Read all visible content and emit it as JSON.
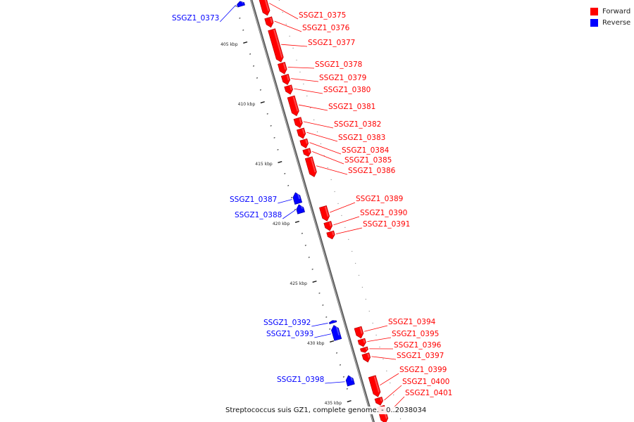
{
  "legend": {
    "forward": {
      "label": "Forward",
      "color": "#ff0000"
    },
    "reverse": {
      "label": "Reverse",
      "color": "#0000ff"
    }
  },
  "caption": "Streptococcus suis GZ1, complete genome. - 0..2038034",
  "colors": {
    "forward": "#ff0000",
    "reverse": "#0000ff",
    "axis": "#8a8a8a"
  },
  "axis": {
    "start_kbp": 401.5,
    "end_kbp": 437.5
  },
  "kbp_labels": [
    {
      "kbp": 405,
      "label": "405 kbp"
    },
    {
      "kbp": 410,
      "label": "410 kbp"
    },
    {
      "kbp": 415,
      "label": "415 kbp"
    },
    {
      "kbp": 420,
      "label": "420 kbp"
    },
    {
      "kbp": 425,
      "label": "425 kbp"
    },
    {
      "kbp": 430,
      "label": "430 kbp"
    },
    {
      "kbp": 435,
      "label": "435 kbp"
    }
  ],
  "genes": [
    {
      "id": "SSGZ1_0373",
      "strand": "reverse",
      "start_kbp": 401.7,
      "end_kbp": 402.1
    },
    {
      "id": "SSGZ1_0375",
      "strand": "forward",
      "start_kbp": 401.6,
      "end_kbp": 403.4
    },
    {
      "id": "SSGZ1_0376",
      "strand": "forward",
      "start_kbp": 403.6,
      "end_kbp": 404.4
    },
    {
      "id": "SSGZ1_0377",
      "strand": "forward",
      "start_kbp": 404.6,
      "end_kbp": 407.3
    },
    {
      "id": "SSGZ1_0378",
      "strand": "forward",
      "start_kbp": 407.4,
      "end_kbp": 408.3
    },
    {
      "id": "SSGZ1_0379",
      "strand": "forward",
      "start_kbp": 408.4,
      "end_kbp": 409.2
    },
    {
      "id": "SSGZ1_0380",
      "strand": "forward",
      "start_kbp": 409.3,
      "end_kbp": 410.0
    },
    {
      "id": "SSGZ1_0381",
      "strand": "forward",
      "start_kbp": 410.2,
      "end_kbp": 411.8
    },
    {
      "id": "SSGZ1_0382",
      "strand": "forward",
      "start_kbp": 412.0,
      "end_kbp": 412.8
    },
    {
      "id": "SSGZ1_0383",
      "strand": "forward",
      "start_kbp": 412.9,
      "end_kbp": 413.7
    },
    {
      "id": "SSGZ1_0384",
      "strand": "forward",
      "start_kbp": 413.8,
      "end_kbp": 414.5
    },
    {
      "id": "SSGZ1_0385",
      "strand": "forward",
      "start_kbp": 414.6,
      "end_kbp": 415.2
    },
    {
      "id": "SSGZ1_0386",
      "strand": "forward",
      "start_kbp": 415.3,
      "end_kbp": 416.9
    },
    {
      "id": "SSGZ1_0387",
      "strand": "reverse",
      "start_kbp": 417.7,
      "end_kbp": 418.6
    },
    {
      "id": "SSGZ1_0388",
      "strand": "reverse",
      "start_kbp": 418.7,
      "end_kbp": 419.4
    },
    {
      "id": "SSGZ1_0389",
      "strand": "forward",
      "start_kbp": 419.4,
      "end_kbp": 420.6
    },
    {
      "id": "SSGZ1_0390",
      "strand": "forward",
      "start_kbp": 420.7,
      "end_kbp": 421.4
    },
    {
      "id": "SSGZ1_0391",
      "strand": "forward",
      "start_kbp": 421.5,
      "end_kbp": 422.1
    },
    {
      "id": "SSGZ1_0392",
      "strand": "reverse",
      "start_kbp": 428.4,
      "end_kbp": 428.6
    },
    {
      "id": "SSGZ1_0393",
      "strand": "reverse",
      "start_kbp": 428.8,
      "end_kbp": 430.0
    },
    {
      "id": "SSGZ1_0394",
      "strand": "forward",
      "start_kbp": 429.5,
      "end_kbp": 430.4
    },
    {
      "id": "SSGZ1_0395",
      "strand": "forward",
      "start_kbp": 430.5,
      "end_kbp": 431.1
    },
    {
      "id": "SSGZ1_0396",
      "strand": "forward",
      "start_kbp": 431.2,
      "end_kbp": 431.6
    },
    {
      "id": "SSGZ1_0397",
      "strand": "forward",
      "start_kbp": 431.7,
      "end_kbp": 432.4
    },
    {
      "id": "SSGZ1_0398",
      "strand": "reverse",
      "start_kbp": 433.0,
      "end_kbp": 433.8
    },
    {
      "id": "SSGZ1_0399",
      "strand": "forward",
      "start_kbp": 433.6,
      "end_kbp": 435.3
    },
    {
      "id": "SSGZ1_0400",
      "strand": "forward",
      "start_kbp": 435.4,
      "end_kbp": 436.0
    },
    {
      "id": "SSGZ1_0401",
      "strand": "forward",
      "start_kbp": 436.1,
      "end_kbp": 437.5
    }
  ]
}
